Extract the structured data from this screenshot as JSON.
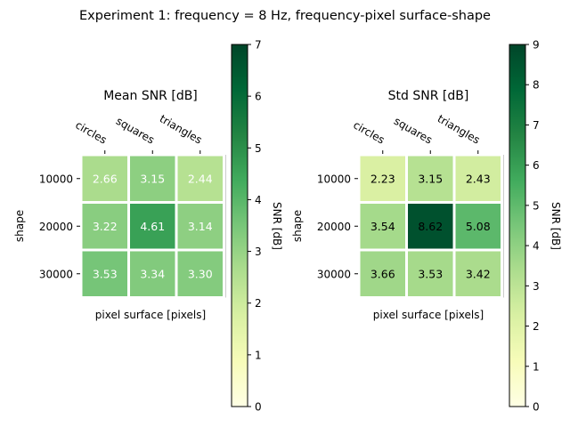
{
  "figure": {
    "suptitle": "Experiment 1: frequency = 8 Hz, frequency-pixel surface-shape"
  },
  "colormap": {
    "name": "YlGn",
    "stops": [
      "#ffffe5",
      "#f7fcb9",
      "#d9f0a3",
      "#addd8e",
      "#78c679",
      "#41ab5d",
      "#238443",
      "#006837",
      "#004529"
    ]
  },
  "chart_data": [
    {
      "type": "heatmap",
      "title": "Mean SNR [dB]",
      "xlabel": "pixel surface [pixels]",
      "ylabel": "shape",
      "x_categories": [
        "circles",
        "squares",
        "triangles"
      ],
      "y_categories": [
        "10000",
        "20000",
        "30000"
      ],
      "values": [
        [
          2.66,
          3.15,
          2.44
        ],
        [
          3.22,
          4.61,
          3.14
        ],
        [
          3.53,
          3.34,
          3.3
        ]
      ],
      "value_labels": [
        [
          "2.66",
          "3.15",
          "2.44"
        ],
        [
          "3.22",
          "4.61",
          "3.14"
        ],
        [
          "3.53",
          "3.34",
          "3.30"
        ]
      ],
      "label_color": "white",
      "colorbar": {
        "label": "SNR [dB]",
        "min": 0,
        "max": 7,
        "ticks": [
          "0",
          "1",
          "2",
          "3",
          "4",
          "5",
          "6",
          "7"
        ]
      }
    },
    {
      "type": "heatmap",
      "title": "Std SNR [dB]",
      "xlabel": "pixel surface [pixels]",
      "ylabel": "shape",
      "x_categories": [
        "circles",
        "squares",
        "triangles"
      ],
      "y_categories": [
        "10000",
        "20000",
        "30000"
      ],
      "values": [
        [
          2.23,
          3.15,
          2.43
        ],
        [
          3.54,
          8.62,
          5.08
        ],
        [
          3.66,
          3.53,
          3.42
        ]
      ],
      "value_labels": [
        [
          "2.23",
          "3.15",
          "2.43"
        ],
        [
          "3.54",
          "8.62",
          "5.08"
        ],
        [
          "3.66",
          "3.53",
          "3.42"
        ]
      ],
      "label_color": "black",
      "colorbar": {
        "label": "SNR [dB]",
        "min": 0,
        "max": 9,
        "ticks": [
          "0",
          "1",
          "2",
          "3",
          "4",
          "5",
          "6",
          "7",
          "8",
          "9"
        ]
      }
    }
  ]
}
